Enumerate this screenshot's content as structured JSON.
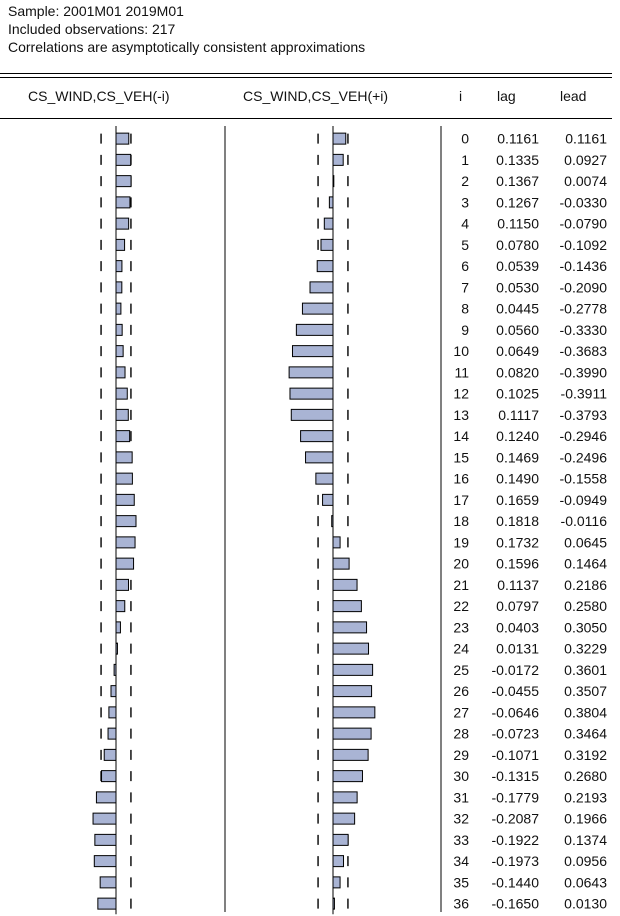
{
  "header": {
    "sample": "Sample: 2001M01 2019M01",
    "observations": "Included observations: 217",
    "note": "Correlations are asymptotically consistent approximations"
  },
  "columns": {
    "lag_panel": "CS_WIND,CS_VEH(-i)",
    "lead_panel": "CS_WIND,CS_VEH(+i)",
    "i": "i",
    "lag": "lag",
    "lead": "lead"
  },
  "colors": {
    "bar_fill": "#a9b4d4",
    "bar_stroke": "#000000"
  },
  "chart_data": {
    "type": "bar",
    "orientation": "horizontal",
    "title": "",
    "xlabel": "",
    "ylabel": "",
    "xlim": [
      -1,
      1
    ],
    "confidence_band": 0.1358,
    "categories": [
      "0",
      "1",
      "2",
      "3",
      "4",
      "5",
      "6",
      "7",
      "8",
      "9",
      "10",
      "11",
      "12",
      "13",
      "14",
      "15",
      "16",
      "17",
      "18",
      "19",
      "20",
      "21",
      "22",
      "23",
      "24",
      "25",
      "26",
      "27",
      "28",
      "29",
      "30",
      "31",
      "32",
      "33",
      "34",
      "35",
      "36"
    ],
    "series": [
      {
        "name": "lag",
        "values": [
          "0.1161",
          "0.1335",
          "0.1367",
          "0.1267",
          "0.1150",
          "0.0780",
          "0.0539",
          "0.0530",
          "0.0445",
          "0.0560",
          "0.0649",
          "0.0820",
          "0.1025",
          "0.1117",
          "0.1240",
          "0.1469",
          "0.1490",
          "0.1659",
          "0.1818",
          "0.1732",
          "0.1596",
          "0.1137",
          "0.0797",
          "0.0403",
          "0.0131",
          "-0.0172",
          "-0.0455",
          "-0.0646",
          "-0.0723",
          "-0.1071",
          "-0.1315",
          "-0.1779",
          "-0.2087",
          "-0.1922",
          "-0.1973",
          "-0.1440",
          "-0.1650"
        ]
      },
      {
        "name": "lead",
        "values": [
          "0.1161",
          "0.0927",
          "0.0074",
          "-0.0330",
          "-0.0790",
          "-0.1092",
          "-0.1436",
          "-0.2090",
          "-0.2778",
          "-0.3330",
          "-0.3683",
          "-0.3990",
          "-0.3911",
          "-0.3793",
          "-0.2946",
          "-0.2496",
          "-0.1558",
          "-0.0949",
          "-0.0116",
          "0.0645",
          "0.1464",
          "0.2186",
          "0.2580",
          "0.3050",
          "0.3229",
          "0.3601",
          "0.3507",
          "0.3804",
          "0.3464",
          "0.3192",
          "0.2680",
          "0.2193",
          "0.1966",
          "0.1374",
          "0.0956",
          "0.0643",
          "0.0130"
        ]
      }
    ]
  }
}
